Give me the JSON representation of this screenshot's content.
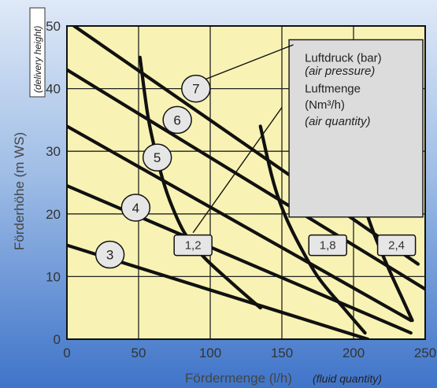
{
  "chart_data": {
    "type": "line",
    "xlabel": "Fördermenge (l/h)",
    "xlabel_note": "(fluid quantity)",
    "ylabel": "Förderhöhe (m WS)",
    "ylabel_note": "(delivery height)",
    "xlim": [
      0,
      250
    ],
    "ylim": [
      0,
      50
    ],
    "x_ticks": [
      0,
      50,
      100,
      150,
      200,
      250
    ],
    "y_ticks": [
      0,
      10,
      20,
      30,
      40,
      50
    ],
    "x_tick_labels": [
      "0",
      "50",
      "100",
      "150",
      "200",
      "250"
    ],
    "y_tick_labels": [
      "0",
      "10",
      "20",
      "30",
      "40",
      "50"
    ],
    "grid": true,
    "legend": {
      "lines": [
        {
          "text": "Luftdruck (bar)",
          "italic": false
        },
        {
          "text": "(air pressure)",
          "italic": true
        },
        {
          "text": "Luftmenge",
          "italic": false
        },
        {
          "text": "(Nm³/h)",
          "italic": false
        },
        {
          "text": "(air quantity)",
          "italic": true
        }
      ]
    },
    "pressure_series": [
      {
        "name": "7",
        "points": [
          [
            5,
            50
          ],
          [
            245,
            12
          ]
        ],
        "label_at": [
          90,
          40
        ]
      },
      {
        "name": "6",
        "points": [
          [
            0,
            43
          ],
          [
            250,
            8
          ]
        ],
        "label_at": [
          77,
          35
        ]
      },
      {
        "name": "5",
        "points": [
          [
            0,
            34
          ],
          [
            240,
            3
          ]
        ],
        "label_at": [
          63,
          29
        ]
      },
      {
        "name": "4",
        "points": [
          [
            0,
            24.5
          ],
          [
            240,
            1
          ]
        ],
        "label_at": [
          48,
          21
        ]
      },
      {
        "name": "3",
        "points": [
          [
            0,
            15
          ],
          [
            210,
            0
          ]
        ],
        "label_at": [
          30,
          13.5
        ]
      }
    ],
    "air_quantity_series": [
      {
        "name": "1,2",
        "points": [
          [
            51,
            45
          ],
          [
            57,
            35
          ],
          [
            65,
            27
          ],
          [
            72,
            22
          ],
          [
            82,
            17
          ],
          [
            96,
            13
          ],
          [
            115,
            9
          ],
          [
            135,
            5
          ]
        ],
        "label_at": [
          88,
          15
        ]
      },
      {
        "name": "1,8",
        "points": [
          [
            135,
            34
          ],
          [
            143,
            26
          ],
          [
            150,
            21
          ],
          [
            160,
            16
          ],
          [
            175,
            10
          ],
          [
            193,
            5
          ],
          [
            208,
            1
          ]
        ],
        "label_at": [
          182,
          15
        ]
      },
      {
        "name": "2,4",
        "points": [
          [
            205,
            23
          ],
          [
            214,
            17
          ],
          [
            225,
            11
          ],
          [
            233,
            7
          ],
          [
            241,
            3
          ]
        ],
        "label_at": [
          230,
          15
        ]
      }
    ],
    "leader_lines": [
      {
        "from": [
          91,
          41
        ],
        "to": [
          158,
          47
        ]
      },
      {
        "from": [
          88,
          17
        ],
        "to": [
          150,
          37
        ]
      }
    ]
  }
}
